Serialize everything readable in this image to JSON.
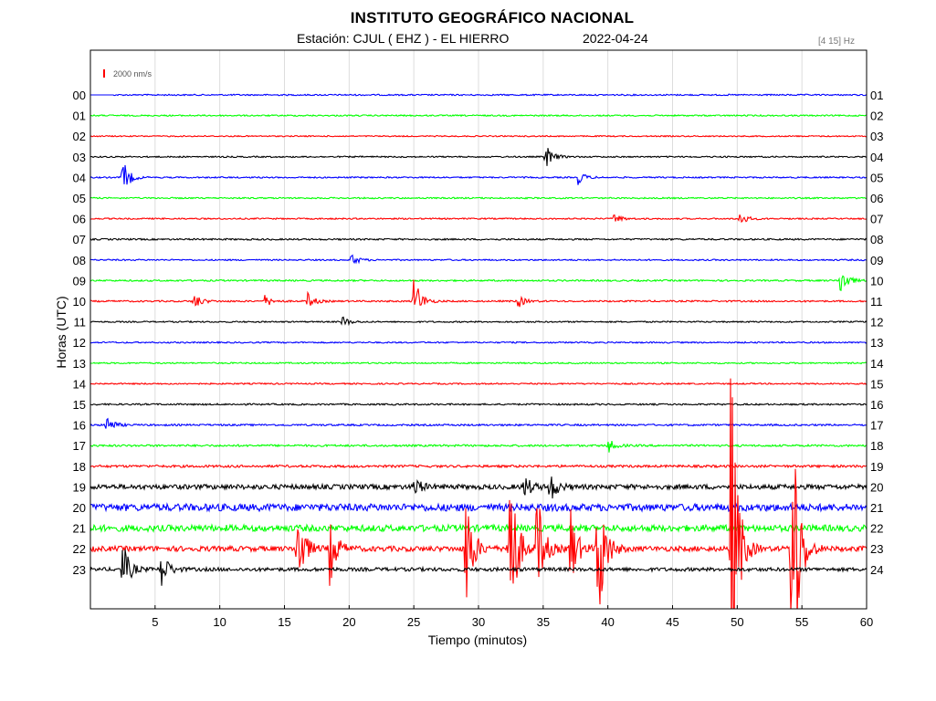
{
  "header": {
    "title": "INSTITUTO GEOGRÁFICO NACIONAL",
    "station": "Estación:  CJUL ( EHZ ) - EL HIERRO",
    "date": "2022-04-24",
    "filter": "[4 15] Hz"
  },
  "colors": {
    "blue": "#0000ff",
    "green": "#00ff00",
    "red": "#ff0000",
    "black": "#000000",
    "frame": "#000000"
  },
  "chart_data": {
    "type": "helicorder",
    "title": "INSTITUTO GEOGRÁFICO NACIONAL",
    "xlabel": "Tiempo (minutos)",
    "ylabel": "Horas (UTC)",
    "xlim": [
      0,
      60
    ],
    "x_ticks": [
      5,
      10,
      15,
      20,
      25,
      30,
      35,
      40,
      45,
      50,
      55,
      60
    ],
    "amplitude_scale": "2000 nm/s",
    "grid": "vertical, light",
    "hours_left": [
      "00",
      "01",
      "02",
      "03",
      "04",
      "05",
      "06",
      "07",
      "08",
      "09",
      "10",
      "11",
      "12",
      "13",
      "14",
      "15",
      "16",
      "17",
      "18",
      "19",
      "20",
      "21",
      "22",
      "23"
    ],
    "hours_right": [
      "01",
      "02",
      "03",
      "04",
      "05",
      "06",
      "07",
      "08",
      "09",
      "10",
      "11",
      "12",
      "13",
      "14",
      "15",
      "16",
      "17",
      "18",
      "19",
      "20",
      "21",
      "22",
      "23",
      "24"
    ],
    "trace_colors": [
      "blue",
      "green",
      "red",
      "black"
    ],
    "noise_level": [
      0.35,
      0.35,
      0.3,
      0.35,
      0.35,
      0.35,
      0.35,
      0.4,
      0.35,
      0.4,
      0.4,
      0.35,
      0.35,
      0.35,
      0.35,
      0.4,
      0.45,
      0.5,
      0.6,
      1.2,
      1.8,
      1.6,
      1.3,
      0.9
    ],
    "events": [
      {
        "hour": 3,
        "minute": 35.2,
        "amplitude": 14
      },
      {
        "hour": 4,
        "minute": 2.5,
        "amplitude": 20
      },
      {
        "hour": 4,
        "minute": 37.7,
        "amplitude": 8
      },
      {
        "hour": 6,
        "minute": 40.5,
        "amplitude": 6
      },
      {
        "hour": 6,
        "minute": 50.2,
        "amplitude": 8
      },
      {
        "hour": 8,
        "minute": 20.2,
        "amplitude": 7
      },
      {
        "hour": 9,
        "minute": 58.0,
        "amplitude": 18
      },
      {
        "hour": 10,
        "minute": 8.0,
        "amplitude": 10
      },
      {
        "hour": 10,
        "minute": 13.5,
        "amplitude": 7
      },
      {
        "hour": 10,
        "minute": 16.8,
        "amplitude": 9
      },
      {
        "hour": 10,
        "minute": 25.0,
        "amplitude": 30
      },
      {
        "hour": 10,
        "minute": 33.0,
        "amplitude": 8
      },
      {
        "hour": 11,
        "minute": 19.5,
        "amplitude": 6
      },
      {
        "hour": 16,
        "minute": 1.2,
        "amplitude": 12
      },
      {
        "hour": 17,
        "minute": 40.0,
        "amplitude": 8
      },
      {
        "hour": 19,
        "minute": 25.0,
        "amplitude": 12
      },
      {
        "hour": 19,
        "minute": 33.5,
        "amplitude": 14
      },
      {
        "hour": 19,
        "minute": 35.5,
        "amplitude": 18
      },
      {
        "hour": 22,
        "minute": 16.0,
        "amplitude": 55
      },
      {
        "hour": 22,
        "minute": 18.5,
        "amplitude": 40
      },
      {
        "hour": 22,
        "minute": 29.0,
        "amplitude": 80
      },
      {
        "hour": 22,
        "minute": 32.3,
        "amplitude": 150
      },
      {
        "hour": 22,
        "minute": 34.5,
        "amplitude": 70
      },
      {
        "hour": 22,
        "minute": 37.0,
        "amplitude": 60
      },
      {
        "hour": 22,
        "minute": 39.2,
        "amplitude": 110
      },
      {
        "hour": 22,
        "minute": 49.5,
        "amplitude": 220
      },
      {
        "hour": 22,
        "minute": 54.2,
        "amplitude": 220
      },
      {
        "hour": 23,
        "minute": 2.5,
        "amplitude": 30
      },
      {
        "hour": 23,
        "minute": 5.5,
        "amplitude": 22
      }
    ]
  },
  "labels": {
    "x_axis": "Tiempo (minutos)",
    "y_axis": "Horas (UTC)",
    "scale": "2000 nm/s"
  }
}
